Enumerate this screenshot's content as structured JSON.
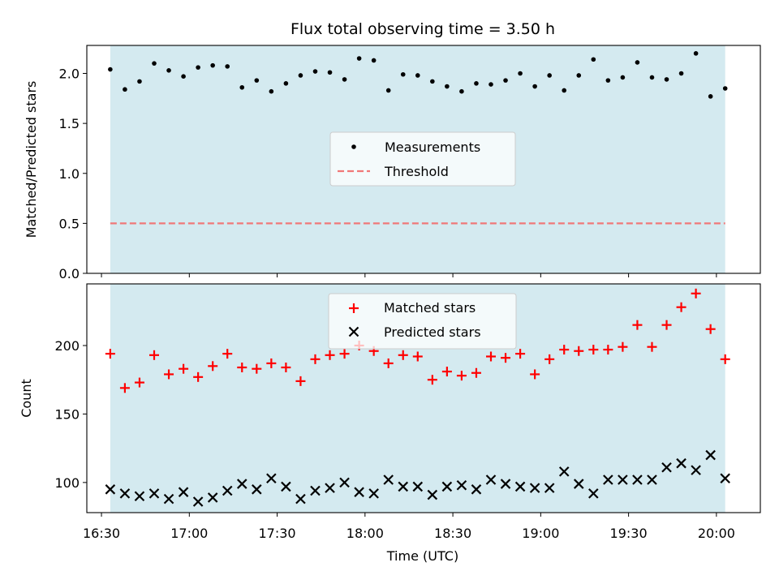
{
  "figure": {
    "title": "Flux total observing time = 3.50 h",
    "xlabel": "Time (UTC)"
  },
  "colors": {
    "shade": "#d4eaf0",
    "threshold": "#f07878",
    "measurement": "#000000",
    "matched": "#ff0000",
    "predicted": "#000000"
  },
  "chart_data": [
    {
      "type": "scatter",
      "ylabel": "Matched/Predicted stars",
      "ylim": [
        0,
        2.28
      ],
      "yticks": [
        "0.0",
        "0.5",
        "1.0",
        "1.5",
        "2.0"
      ],
      "xlim": [
        "16:25",
        "20:15"
      ],
      "xticks": [
        "16:30",
        "17:00",
        "17:30",
        "18:00",
        "18:30",
        "19:00",
        "19:30",
        "20:00"
      ],
      "shaded_span": [
        "16:33",
        "20:03"
      ],
      "legend_position": "center",
      "series": [
        {
          "name": "Measurements",
          "marker": "dot",
          "x": [
            "16:33",
            "16:38",
            "16:43",
            "16:48",
            "16:53",
            "16:58",
            "17:03",
            "17:08",
            "17:13",
            "17:18",
            "17:23",
            "17:28",
            "17:33",
            "17:38",
            "17:43",
            "17:48",
            "17:53",
            "17:58",
            "18:03",
            "18:08",
            "18:13",
            "18:18",
            "18:23",
            "18:28",
            "18:33",
            "18:38",
            "18:43",
            "18:48",
            "18:53",
            "18:58",
            "19:03",
            "19:08",
            "19:13",
            "19:18",
            "19:23",
            "19:28",
            "19:33",
            "19:38",
            "19:43",
            "19:48",
            "19:53",
            "19:58",
            "20:03"
          ],
          "y": [
            2.04,
            1.84,
            1.92,
            2.1,
            2.03,
            1.97,
            2.06,
            2.08,
            2.07,
            1.86,
            1.93,
            1.82,
            1.9,
            1.98,
            2.02,
            2.01,
            1.94,
            2.15,
            2.13,
            1.83,
            1.99,
            1.98,
            1.92,
            1.87,
            1.82,
            1.9,
            1.89,
            1.93,
            2.0,
            1.87,
            1.98,
            1.83,
            1.98,
            2.14,
            1.93,
            1.96,
            2.11,
            1.96,
            1.94,
            2.0,
            2.2,
            1.77,
            1.85
          ]
        },
        {
          "name": "Threshold",
          "marker": "dashed-line",
          "x": [
            "16:33",
            "20:03"
          ],
          "y": [
            0.5,
            0.5
          ]
        }
      ]
    },
    {
      "type": "scatter",
      "ylabel": "Count",
      "ylim": [
        78,
        245
      ],
      "yticks": [
        "100",
        "150",
        "200"
      ],
      "xlim": [
        "16:25",
        "20:15"
      ],
      "xticks": [
        "16:30",
        "17:00",
        "17:30",
        "18:00",
        "18:30",
        "19:00",
        "19:30",
        "20:00"
      ],
      "shaded_span": [
        "16:33",
        "20:03"
      ],
      "legend_position": "upper center",
      "series": [
        {
          "name": "Matched stars",
          "marker": "plus",
          "x": [
            "16:33",
            "16:38",
            "16:43",
            "16:48",
            "16:53",
            "16:58",
            "17:03",
            "17:08",
            "17:13",
            "17:18",
            "17:23",
            "17:28",
            "17:33",
            "17:38",
            "17:43",
            "17:48",
            "17:53",
            "17:58",
            "18:03",
            "18:08",
            "18:13",
            "18:18",
            "18:23",
            "18:28",
            "18:33",
            "18:38",
            "18:43",
            "18:48",
            "18:53",
            "18:58",
            "19:03",
            "19:08",
            "19:13",
            "19:18",
            "19:23",
            "19:28",
            "19:33",
            "19:38",
            "19:43",
            "19:48",
            "19:53",
            "19:58",
            "20:03"
          ],
          "y": [
            194,
            169,
            173,
            193,
            179,
            183,
            177,
            185,
            194,
            184,
            183,
            187,
            184,
            174,
            190,
            193,
            194,
            200,
            196,
            187,
            193,
            192,
            175,
            181,
            178,
            180,
            192,
            191,
            194,
            179,
            190,
            197,
            196,
            197,
            197,
            199,
            215,
            199,
            215,
            228,
            238,
            212,
            190
          ]
        },
        {
          "name": "Predicted stars",
          "marker": "x",
          "x": [
            "16:33",
            "16:38",
            "16:43",
            "16:48",
            "16:53",
            "16:58",
            "17:03",
            "17:08",
            "17:13",
            "17:18",
            "17:23",
            "17:28",
            "17:33",
            "17:38",
            "17:43",
            "17:48",
            "17:53",
            "17:58",
            "18:03",
            "18:08",
            "18:13",
            "18:18",
            "18:23",
            "18:28",
            "18:33",
            "18:38",
            "18:43",
            "18:48",
            "18:53",
            "18:58",
            "19:03",
            "19:08",
            "19:13",
            "19:18",
            "19:23",
            "19:28",
            "19:33",
            "19:38",
            "19:43",
            "19:48",
            "19:53",
            "19:58",
            "20:03"
          ],
          "y": [
            95,
            92,
            90,
            92,
            88,
            93,
            86,
            89,
            94,
            99,
            95,
            103,
            97,
            88,
            94,
            96,
            100,
            93,
            92,
            102,
            97,
            97,
            91,
            97,
            98,
            95,
            102,
            99,
            97,
            96,
            96,
            108,
            99,
            92,
            102,
            102,
            102,
            102,
            111,
            114,
            109,
            120,
            103
          ]
        }
      ]
    }
  ]
}
